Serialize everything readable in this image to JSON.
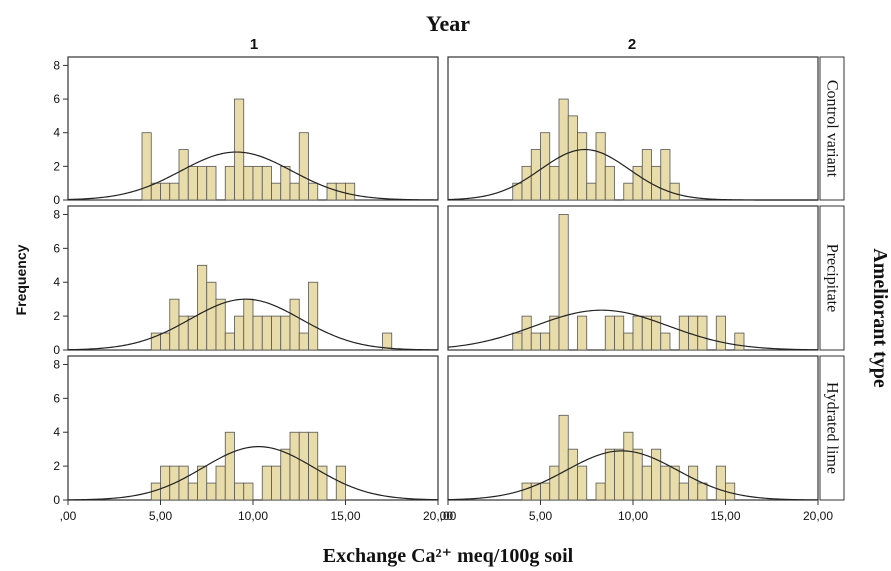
{
  "chart_data": {
    "type": "histogram",
    "title": "Year",
    "column_labels": [
      "1",
      "2"
    ],
    "row_facet_label": "Ameliorant type",
    "row_labels": [
      "Control variant",
      "Precipitate",
      "Hydrated lime"
    ],
    "xlabel": "Exchange Ca²⁺ meq/100g soil",
    "ylabel": "Frequency",
    "xlim": [
      0,
      20
    ],
    "ylim": [
      0,
      8.5
    ],
    "x_ticks": [
      0,
      5,
      10,
      15,
      20
    ],
    "x_tick_labels": [
      ",00",
      "5,00",
      "10,00",
      "15,00",
      "20,00"
    ],
    "y_ticks": [
      0,
      2,
      4,
      6,
      8
    ],
    "y_tick_labels": [
      "0",
      "2",
      "4",
      "6",
      "8"
    ],
    "bin_width": 0.5,
    "bar_color": "#e8dcaa",
    "bar_edge_color": "#555555",
    "curve_color": "#222222",
    "grid": false,
    "panels": [
      {
        "row": "Control variant",
        "column": "1",
        "bins": [
          [
            4,
            4
          ],
          [
            4.5,
            1
          ],
          [
            5,
            1
          ],
          [
            5.5,
            1
          ],
          [
            6,
            3
          ],
          [
            6.5,
            2
          ],
          [
            7,
            2
          ],
          [
            7.5,
            2
          ],
          [
            8.5,
            2
          ],
          [
            9,
            6
          ],
          [
            9.5,
            2
          ],
          [
            10,
            2
          ],
          [
            10.5,
            2
          ],
          [
            11,
            1
          ],
          [
            11.5,
            2
          ],
          [
            12,
            1
          ],
          [
            12.5,
            4
          ],
          [
            13,
            1
          ],
          [
            14,
            1
          ],
          [
            14.5,
            1
          ],
          [
            15,
            1
          ]
        ],
        "normal_curve": {
          "mean": 9.1,
          "sd": 3.0,
          "peak": 2.85
        }
      },
      {
        "row": "Control variant",
        "column": "2",
        "bins": [
          [
            3.5,
            1
          ],
          [
            4,
            2
          ],
          [
            4.5,
            3
          ],
          [
            5,
            4
          ],
          [
            5.5,
            2
          ],
          [
            6,
            6
          ],
          [
            6.5,
            5
          ],
          [
            7,
            4
          ],
          [
            7.5,
            1
          ],
          [
            8,
            4
          ],
          [
            8.5,
            2
          ],
          [
            9.5,
            1
          ],
          [
            10,
            2
          ],
          [
            10.5,
            3
          ],
          [
            11,
            2
          ],
          [
            11.5,
            3
          ],
          [
            12,
            1
          ]
        ],
        "normal_curve": {
          "mean": 7.4,
          "sd": 2.4,
          "peak": 3.0
        }
      },
      {
        "row": "Precipitate",
        "column": "1",
        "bins": [
          [
            4.5,
            1
          ],
          [
            5,
            1
          ],
          [
            5.5,
            3
          ],
          [
            6,
            2
          ],
          [
            6.5,
            2
          ],
          [
            7,
            5
          ],
          [
            7.5,
            4
          ],
          [
            8,
            3
          ],
          [
            8.5,
            1
          ],
          [
            9,
            2
          ],
          [
            9.5,
            3
          ],
          [
            10,
            2
          ],
          [
            10.5,
            2
          ],
          [
            11,
            2
          ],
          [
            11.5,
            2
          ],
          [
            12,
            3
          ],
          [
            12.5,
            1
          ],
          [
            13,
            4
          ],
          [
            17,
            1
          ]
        ],
        "normal_curve": {
          "mean": 9.6,
          "sd": 3.0,
          "peak": 3.0
        }
      },
      {
        "row": "Precipitate",
        "column": "2",
        "bins": [
          [
            3.5,
            1
          ],
          [
            4,
            2
          ],
          [
            4.5,
            1
          ],
          [
            5,
            1
          ],
          [
            5.5,
            2
          ],
          [
            6,
            8
          ],
          [
            7,
            2
          ],
          [
            8.5,
            2
          ],
          [
            9,
            2
          ],
          [
            9.5,
            1
          ],
          [
            10,
            2
          ],
          [
            10.5,
            2
          ],
          [
            11,
            2
          ],
          [
            11.5,
            1
          ],
          [
            12.5,
            2
          ],
          [
            13,
            2
          ],
          [
            13.5,
            2
          ],
          [
            14.5,
            2
          ],
          [
            15.5,
            1
          ]
        ],
        "normal_curve": {
          "mean": 8.3,
          "sd": 3.6,
          "peak": 2.35
        }
      },
      {
        "row": "Hydrated lime",
        "column": "1",
        "bins": [
          [
            4.5,
            1
          ],
          [
            5,
            2
          ],
          [
            5.5,
            2
          ],
          [
            6,
            2
          ],
          [
            6.5,
            1
          ],
          [
            7,
            2
          ],
          [
            7.5,
            1
          ],
          [
            8,
            2
          ],
          [
            8.5,
            4
          ],
          [
            9,
            1
          ],
          [
            9.5,
            1
          ],
          [
            10.5,
            2
          ],
          [
            11,
            2
          ],
          [
            11.5,
            3
          ],
          [
            12,
            4
          ],
          [
            12.5,
            4
          ],
          [
            13,
            4
          ],
          [
            13.5,
            2
          ],
          [
            14.5,
            2
          ]
        ],
        "normal_curve": {
          "mean": 10.3,
          "sd": 3.0,
          "peak": 3.15
        }
      },
      {
        "row": "Hydrated lime",
        "column": "2",
        "bins": [
          [
            4,
            1
          ],
          [
            4.5,
            1
          ],
          [
            5,
            1
          ],
          [
            5.5,
            2
          ],
          [
            6,
            5
          ],
          [
            6.5,
            3
          ],
          [
            7,
            2
          ],
          [
            8,
            1
          ],
          [
            8.5,
            3
          ],
          [
            9,
            3
          ],
          [
            9.5,
            4
          ],
          [
            10,
            3
          ],
          [
            10.5,
            2
          ],
          [
            11,
            3
          ],
          [
            11.5,
            2
          ],
          [
            12,
            2
          ],
          [
            12.5,
            1
          ],
          [
            13,
            2
          ],
          [
            13.5,
            1
          ],
          [
            14.5,
            2
          ],
          [
            15,
            1
          ]
        ],
        "normal_curve": {
          "mean": 9.4,
          "sd": 3.0,
          "peak": 2.9
        }
      }
    ]
  }
}
